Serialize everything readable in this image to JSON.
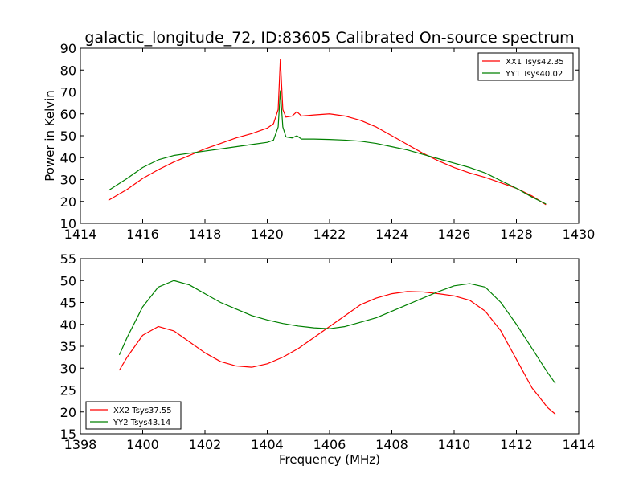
{
  "chart_data": [
    {
      "type": "line",
      "title": "galactic_longitude_72, ID:83605 Calibrated On-source spectrum",
      "xlabel": "",
      "ylabel": "Power in Kelvin",
      "xlim": [
        1414,
        1430
      ],
      "ylim": [
        10,
        90
      ],
      "xticks": [
        "1414",
        "1416",
        "1418",
        "1420",
        "1422",
        "1424",
        "1426",
        "1428",
        "1430"
      ],
      "yticks": [
        "10",
        "20",
        "30",
        "40",
        "50",
        "60",
        "70",
        "80",
        "90"
      ],
      "legend_position": "top-right",
      "grid": false,
      "series": [
        {
          "name": "XX1 Tsys42.35",
          "color": "#ff0000",
          "x": [
            1414.9,
            1415.5,
            1416.0,
            1416.5,
            1417.0,
            1417.5,
            1418.0,
            1418.5,
            1419.0,
            1419.5,
            1420.0,
            1420.2,
            1420.35,
            1420.42,
            1420.5,
            1420.6,
            1420.8,
            1420.95,
            1421.1,
            1421.5,
            1422.0,
            1422.5,
            1423.0,
            1423.5,
            1424.0,
            1424.5,
            1425.0,
            1425.5,
            1426.0,
            1426.5,
            1427.0,
            1427.5,
            1428.0,
            1428.5,
            1428.95
          ],
          "y": [
            20.5,
            25.5,
            30.5,
            34.5,
            38.0,
            41.0,
            44.0,
            46.5,
            49.0,
            51.0,
            53.5,
            55.5,
            62.0,
            85.0,
            62.0,
            58.5,
            59.0,
            61.0,
            59.0,
            59.5,
            60.0,
            59.0,
            57.0,
            54.0,
            50.0,
            46.0,
            42.0,
            38.5,
            35.5,
            33.0,
            31.0,
            28.5,
            26.0,
            22.5,
            18.5
          ]
        },
        {
          "name": "YY1 Tsys40.02",
          "color": "#008000",
          "x": [
            1414.9,
            1415.5,
            1416.0,
            1416.5,
            1417.0,
            1417.5,
            1418.0,
            1418.5,
            1419.0,
            1419.5,
            1420.0,
            1420.2,
            1420.35,
            1420.42,
            1420.5,
            1420.6,
            1420.8,
            1420.95,
            1421.1,
            1421.5,
            1422.0,
            1422.5,
            1423.0,
            1423.5,
            1424.0,
            1424.5,
            1425.0,
            1425.5,
            1426.0,
            1426.5,
            1427.0,
            1427.5,
            1428.0,
            1428.5,
            1428.95
          ],
          "y": [
            25.0,
            30.5,
            35.5,
            39.0,
            41.0,
            42.0,
            43.0,
            44.0,
            45.0,
            46.0,
            47.0,
            48.0,
            54.0,
            70.5,
            54.0,
            49.5,
            49.0,
            50.0,
            48.5,
            48.5,
            48.3,
            48.0,
            47.5,
            46.5,
            45.0,
            43.5,
            41.5,
            39.5,
            37.5,
            35.5,
            33.0,
            29.5,
            26.0,
            22.0,
            18.8
          ]
        }
      ]
    },
    {
      "type": "line",
      "title": "",
      "xlabel": "Frequency (MHz)",
      "ylabel": "",
      "xlim": [
        1398,
        1414
      ],
      "ylim": [
        15,
        55
      ],
      "xticks": [
        "1398",
        "1400",
        "1402",
        "1404",
        "1406",
        "1408",
        "1410",
        "1412",
        "1414"
      ],
      "yticks": [
        "15",
        "20",
        "25",
        "30",
        "35",
        "40",
        "45",
        "50",
        "55"
      ],
      "legend_position": "bottom-left",
      "grid": false,
      "series": [
        {
          "name": "XX2 Tsys37.55",
          "color": "#ff0000",
          "x": [
            1399.25,
            1399.5,
            1400.0,
            1400.5,
            1401.0,
            1401.5,
            1402.0,
            1402.5,
            1403.0,
            1403.5,
            1404.0,
            1404.5,
            1405.0,
            1405.5,
            1406.0,
            1406.5,
            1407.0,
            1407.5,
            1408.0,
            1408.5,
            1409.0,
            1409.5,
            1410.0,
            1410.5,
            1411.0,
            1411.5,
            1412.0,
            1412.5,
            1413.0,
            1413.25
          ],
          "y": [
            29.5,
            32.5,
            37.5,
            39.5,
            38.5,
            36.0,
            33.5,
            31.5,
            30.5,
            30.2,
            31.0,
            32.5,
            34.5,
            37.0,
            39.5,
            42.0,
            44.5,
            46.0,
            47.0,
            47.5,
            47.4,
            47.0,
            46.5,
            45.5,
            43.0,
            38.5,
            32.0,
            25.5,
            21.0,
            19.5
          ]
        },
        {
          "name": "YY2 Tsys43.14",
          "color": "#008000",
          "x": [
            1399.25,
            1399.5,
            1400.0,
            1400.5,
            1401.0,
            1401.5,
            1402.0,
            1402.5,
            1403.0,
            1403.5,
            1404.0,
            1404.5,
            1405.0,
            1405.5,
            1406.0,
            1406.5,
            1407.0,
            1407.5,
            1408.0,
            1408.5,
            1409.0,
            1409.5,
            1410.0,
            1410.5,
            1411.0,
            1411.5,
            1412.0,
            1412.5,
            1413.0,
            1413.25
          ],
          "y": [
            33.0,
            37.0,
            44.0,
            48.5,
            50.0,
            49.0,
            47.0,
            45.0,
            43.5,
            42.0,
            41.0,
            40.2,
            39.6,
            39.2,
            39.0,
            39.5,
            40.5,
            41.5,
            43.0,
            44.5,
            46.0,
            47.5,
            48.8,
            49.3,
            48.5,
            45.0,
            40.0,
            34.5,
            29.0,
            26.5
          ]
        }
      ]
    }
  ]
}
